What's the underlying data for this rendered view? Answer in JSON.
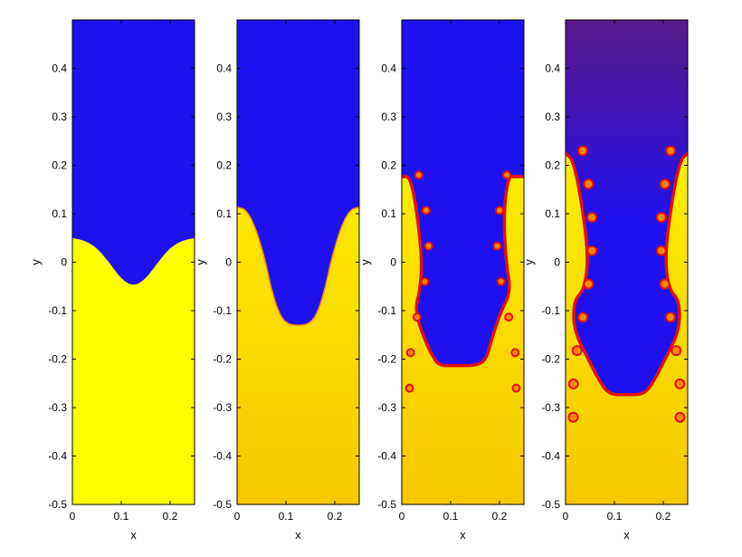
{
  "chart_data": [
    {
      "type": "heatmap",
      "title": "",
      "xlabel": "x",
      "ylabel": "y",
      "xlim": [
        0,
        0.25
      ],
      "ylim": [
        -0.5,
        0.5
      ],
      "xticks": [
        "0",
        "0.1",
        "0.2"
      ],
      "xtick_values": [
        0,
        0.1,
        0.2
      ],
      "yticks": [
        "-0.5",
        "-0.4",
        "-0.3",
        "-0.2",
        "-0.1",
        "0",
        "0.1",
        "0.2",
        "0.3",
        "0.4"
      ],
      "ytick_values": [
        -0.5,
        -0.4,
        -0.3,
        -0.2,
        -0.1,
        0,
        0.1,
        0.2,
        0.3,
        0.4
      ],
      "interface": {
        "x": [
          0,
          0.025,
          0.05,
          0.075,
          0.1,
          0.125,
          0.15,
          0.175,
          0.2,
          0.225,
          0.25
        ],
        "y": [
          0.05,
          0.045,
          0.03,
          0.0,
          -0.035,
          -0.05,
          -0.035,
          0.0,
          0.03,
          0.045,
          0.05
        ]
      }
    },
    {
      "type": "heatmap",
      "title": "",
      "xlabel": "x",
      "ylabel": "y",
      "xlim": [
        0,
        0.25
      ],
      "ylim": [
        -0.5,
        0.5
      ],
      "xticks": [
        "0",
        "0.1",
        "0.2"
      ],
      "xtick_values": [
        0,
        0.1,
        0.2
      ],
      "yticks": [
        "-0.5",
        "-0.4",
        "-0.3",
        "-0.2",
        "-0.1",
        "0",
        "0.1",
        "0.2",
        "0.3",
        "0.4"
      ],
      "ytick_values": [
        -0.5,
        -0.4,
        -0.3,
        -0.2,
        -0.1,
        0,
        0.1,
        0.2,
        0.3,
        0.4
      ],
      "interface": {
        "x": [
          0,
          0.02,
          0.04,
          0.06,
          0.07,
          0.085,
          0.1,
          0.125,
          0.15,
          0.165,
          0.18,
          0.19,
          0.21,
          0.23,
          0.25
        ],
        "y": [
          0.115,
          0.11,
          0.07,
          0.0,
          -0.05,
          -0.1,
          -0.125,
          -0.13,
          -0.125,
          -0.1,
          -0.05,
          0.0,
          0.07,
          0.11,
          0.115
        ]
      }
    },
    {
      "type": "heatmap",
      "title": "",
      "xlabel": "x",
      "ylabel": "y",
      "xlim": [
        0,
        0.25
      ],
      "ylim": [
        -0.5,
        0.5
      ],
      "xticks": [
        "0",
        "0.1",
        "0.2"
      ],
      "xtick_values": [
        0,
        0.1,
        0.2
      ],
      "yticks": [
        "-0.5",
        "-0.4",
        "-0.3",
        "-0.2",
        "-0.1",
        "0",
        "0.1",
        "0.2",
        "0.3",
        "0.4"
      ],
      "ytick_values": [
        -0.5,
        -0.4,
        -0.3,
        -0.2,
        -0.1,
        0,
        0.1,
        0.2,
        0.3,
        0.4
      ],
      "interface": {
        "x": [
          0,
          0.02,
          0.035,
          0.045,
          0.04,
          0.03,
          0.05,
          0.07,
          0.08,
          0.1,
          0.125,
          0.15,
          0.17,
          0.18,
          0.2,
          0.22,
          0.21,
          0.205,
          0.215,
          0.23,
          0.25
        ],
        "y": [
          0.18,
          0.18,
          0.1,
          0.0,
          -0.06,
          -0.1,
          -0.16,
          -0.2,
          -0.21,
          -0.21,
          -0.21,
          -0.21,
          -0.2,
          -0.16,
          -0.1,
          -0.06,
          0.0,
          0.1,
          0.18,
          0.18,
          0.18
        ]
      }
    },
    {
      "type": "heatmap",
      "title": "",
      "xlabel": "x",
      "ylabel": "y",
      "xlim": [
        0,
        0.25
      ],
      "ylim": [
        -0.5,
        0.5
      ],
      "xticks": [
        "0",
        "0.1",
        "0.2"
      ],
      "xtick_values": [
        0,
        0.1,
        0.2
      ],
      "yticks": [
        "-0.5",
        "-0.4",
        "-0.3",
        "-0.2",
        "-0.1",
        "0",
        "0.1",
        "0.2",
        "0.3",
        "0.4"
      ],
      "ytick_values": [
        -0.5,
        -0.4,
        -0.3,
        -0.2,
        -0.1,
        0,
        0.1,
        0.2,
        0.3,
        0.4
      ],
      "interface": {
        "x": [
          0,
          0.02,
          0.04,
          0.05,
          0.04,
          0.02,
          0.02,
          0.05,
          0.07,
          0.09,
          0.125,
          0.16,
          0.18,
          0.2,
          0.23,
          0.23,
          0.21,
          0.2,
          0.21,
          0.23,
          0.25
        ],
        "y": [
          0.23,
          0.21,
          0.1,
          0.0,
          -0.06,
          -0.08,
          -0.14,
          -0.2,
          -0.24,
          -0.27,
          -0.27,
          -0.27,
          -0.24,
          -0.2,
          -0.14,
          -0.08,
          -0.06,
          0.0,
          0.1,
          0.21,
          0.23
        ]
      }
    }
  ],
  "colors": {
    "light_fluid": "#1f10f0",
    "heavy_fluid": "#ffff00",
    "heavy_fluid_deep": "#f7c700",
    "mixing_edge": "#e01010",
    "mixing_glow": "#ff8800",
    "top_purple": "#5a1a8a"
  }
}
